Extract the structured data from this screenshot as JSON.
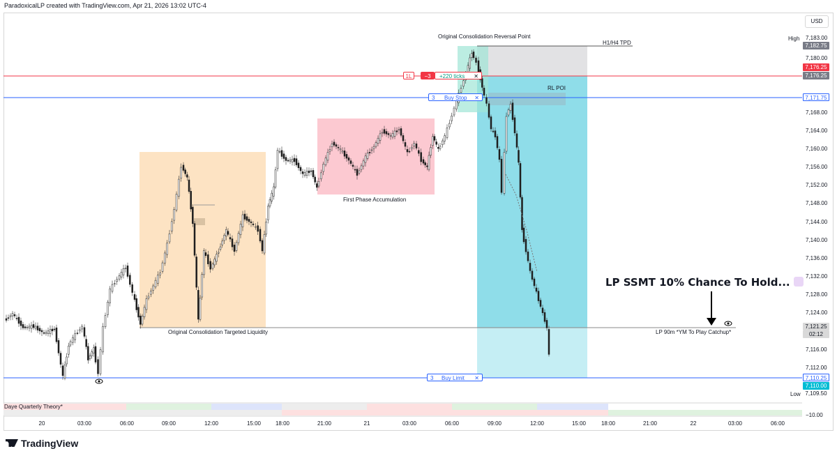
{
  "header": "ParadoxicalLP created with TradingView.com, Apr 21, 2026 13:02 UTC-4",
  "currency_button": "USD",
  "logo_text": "TradingView",
  "price_axis": {
    "ticks": [
      "7,183.00",
      "7,180.00",
      "7,168.00",
      "7,164.00",
      "7,160.00",
      "7,156.00",
      "7,152.00",
      "7,148.00",
      "7,144.00",
      "7,140.00",
      "7,136.00",
      "7,132.00",
      "7,128.00",
      "7,124.00",
      "7,116.00",
      "7,112.00",
      "−10.00"
    ],
    "high_label": "High",
    "low_label": "Low",
    "tags": {
      "high_price": "7,182.75",
      "red_line": "7,176.25",
      "red_line_2": "7,176.25",
      "buy_stop": "7,171.75",
      "current": "7,121.25",
      "countdown": "02:12",
      "buy_limit": "7,110.25",
      "last_close": "7,110.00",
      "low_price": "7,109.50"
    }
  },
  "time_axis": [
    "20",
    "03:00",
    "06:00",
    "09:00",
    "12:00",
    "15:00",
    "18:00",
    "21:00",
    "21",
    "03:00",
    "06:00",
    "09:00",
    "12:00",
    "15:00",
    "18:00",
    "21:00",
    "22",
    "03:00",
    "06:00"
  ],
  "annotations": {
    "reversal": "Original Consolidation Reversal Point",
    "tpd": "H1/H4 TPD",
    "rl_poi": "RL POI",
    "first_phase": "First Phase Accumulation",
    "targeted": "Original Consolidation Targeted Liquidity",
    "lp_ssmt": "LP SSMT 10% Chance To Hold...",
    "lp_90m": "LP 90m *YM To Play Catchup*"
  },
  "orders": {
    "position": {
      "qty_icon": "1L",
      "qty": "−3",
      "ticks": "+220 ticks",
      "close": "✕"
    },
    "buy_stop": {
      "qty": "3",
      "label": "Buy Stop",
      "close": "✕"
    },
    "buy_limit": {
      "qty": "3",
      "label": "Buy Limit",
      "close": "✕"
    }
  },
  "indicator": "Daye Quarterly Theory*",
  "colors": {
    "orange_zone": "#fde3c3",
    "pink_zone": "#fcc9d1",
    "teal_zone": "#8fdde9",
    "light_teal": "#c5eef4",
    "gray_zone": "#e2e2e4",
    "red_line": "#f23645",
    "blue_line": "#2962ff",
    "tag_dark": "#787b86",
    "tag_teal": "#00bcd4"
  }
}
